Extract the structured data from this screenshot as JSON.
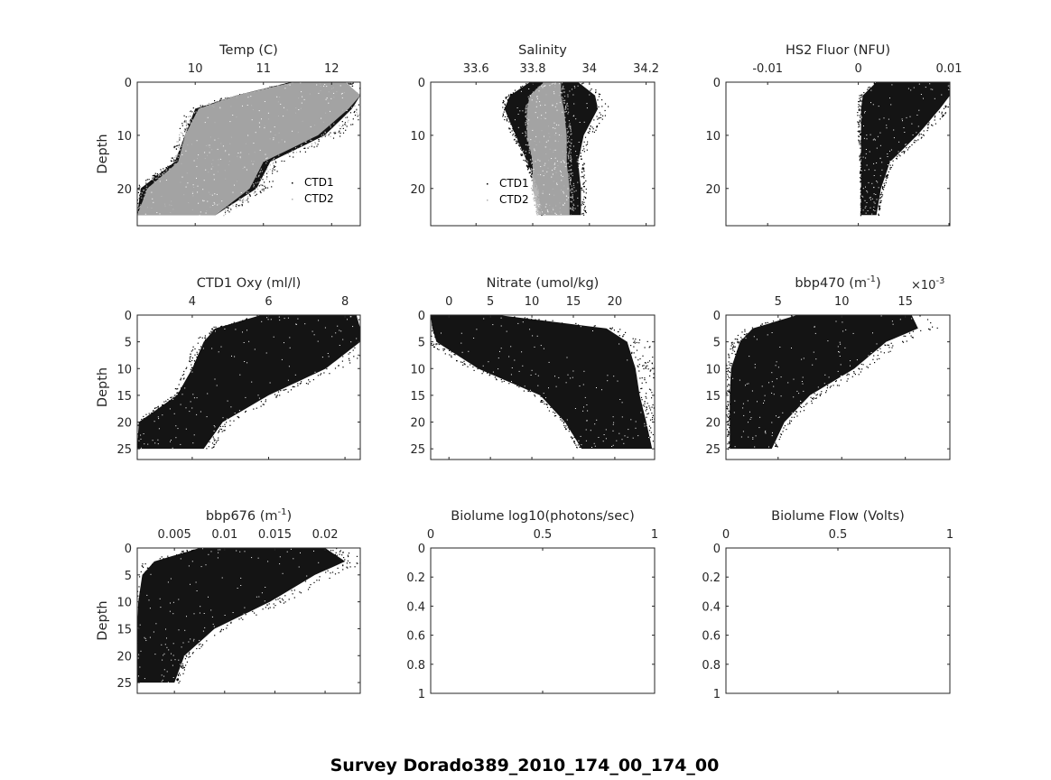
{
  "suptitle": "Survey Dorado389_2010_174_00_174_00",
  "colors": {
    "ctd1": "#000000",
    "ctd2": "#b0b0b0",
    "axis": "#262626"
  },
  "chart_data": [
    {
      "type": "scatter",
      "title": "Temp (C)",
      "ylabel": "Depth",
      "xlim": [
        9.15,
        12.42
      ],
      "ylim": [
        0,
        27
      ],
      "xticks": [
        10,
        11,
        12
      ],
      "xtick_labels": [
        "10",
        "11",
        "12"
      ],
      "yticks": [
        0,
        10,
        20
      ],
      "ytick_labels": [
        "0",
        "10",
        "20"
      ],
      "legend": {
        "entries": [
          "CTD1",
          "CTD2"
        ],
        "placement": "bottom-right"
      },
      "series": [
        {
          "name": "CTD1",
          "color": "#000000",
          "envelope": {
            "depth": [
              0,
              2.5,
              5,
              10,
              15,
              20,
              25
            ],
            "min": [
              11.4,
              10.6,
              10.0,
              9.85,
              9.7,
              9.2,
              9.15
            ],
            "max": [
              12.2,
              12.42,
              12.3,
              11.9,
              11.1,
              10.9,
              10.3
            ]
          }
        },
        {
          "name": "CTD2",
          "color": "#b0b0b0",
          "envelope": {
            "depth": [
              0,
              2.5,
              5,
              10,
              15,
              20,
              25
            ],
            "min": [
              11.45,
              10.6,
              10.05,
              9.85,
              9.75,
              9.3,
              9.15
            ],
            "max": [
              12.2,
              12.42,
              12.25,
              11.8,
              11.0,
              10.8,
              10.3
            ]
          }
        }
      ]
    },
    {
      "type": "scatter",
      "title": "Salinity",
      "ylabel": "",
      "xlim": [
        33.44,
        34.23
      ],
      "ylim": [
        0,
        27
      ],
      "xticks": [
        33.6,
        33.8,
        34,
        34.2
      ],
      "xtick_labels": [
        "33.6",
        "33.8",
        "34",
        "34.2"
      ],
      "yticks": [
        0,
        10,
        20
      ],
      "ytick_labels": [
        "0",
        "10",
        "20"
      ],
      "legend": {
        "entries": [
          "CTD1",
          "CTD2"
        ],
        "placement": "bottom-left"
      },
      "series": [
        {
          "name": "CTD1",
          "color": "#000000",
          "envelope": {
            "depth": [
              0,
              2.5,
              5,
              10,
              15,
              20,
              25
            ],
            "min": [
              33.79,
              33.72,
              33.7,
              33.74,
              33.78,
              33.82,
              33.83
            ],
            "max": [
              33.96,
              34.02,
              34.03,
              33.98,
              33.96,
              33.97,
              33.97
            ]
          }
        },
        {
          "name": "CTD2",
          "color": "#b0b0b0",
          "envelope": {
            "depth": [
              0,
              2.5,
              5,
              10,
              15,
              20,
              25
            ],
            "min": [
              33.84,
              33.79,
              33.78,
              33.78,
              33.8,
              33.8,
              33.82
            ],
            "max": [
              33.9,
              33.9,
              33.91,
              33.92,
              33.92,
              33.93,
              33.93
            ]
          }
        }
      ]
    },
    {
      "type": "scatter",
      "title": "HS2 Fluor (NFU)",
      "ylabel": "",
      "xlim": [
        -0.0146,
        0.0101
      ],
      "ylim": [
        0,
        27
      ],
      "xticks": [
        -0.01,
        0,
        0.01
      ],
      "xtick_labels": [
        "-0.01",
        "0",
        "0.01"
      ],
      "yticks": [
        0,
        10,
        20
      ],
      "ytick_labels": [
        "0",
        "10",
        "20"
      ],
      "series": [
        {
          "name": "HS2",
          "color": "#000000",
          "envelope": {
            "depth": [
              0,
              2.5,
              5,
              10,
              15,
              20,
              25
            ],
            "min": [
              0.002,
              0.0005,
              0.0003,
              0.0003,
              0.0003,
              0.0003,
              0.0003
            ],
            "max": [
              0.01,
              0.0101,
              0.009,
              0.0065,
              0.0035,
              0.0025,
              0.002
            ]
          }
        }
      ]
    },
    {
      "type": "scatter",
      "title": "CTD1 Oxy (ml/l)",
      "ylabel": "Depth",
      "xlim": [
        2.56,
        8.4
      ],
      "ylim": [
        0,
        27
      ],
      "xticks": [
        4,
        6,
        8
      ],
      "xtick_labels": [
        "4",
        "6",
        "8"
      ],
      "yticks": [
        0,
        5,
        10,
        15,
        20,
        25
      ],
      "ytick_labels": [
        "0",
        "5",
        "10",
        "15",
        "20",
        "25"
      ],
      "series": [
        {
          "name": "CTD1 Oxy",
          "color": "#000000",
          "envelope": {
            "depth": [
              0,
              2.5,
              5,
              10,
              15,
              20,
              25
            ],
            "min": [
              5.8,
              4.6,
              4.3,
              4.0,
              3.6,
              2.6,
              2.56
            ],
            "max": [
              8.3,
              8.4,
              8.4,
              7.5,
              6.0,
              4.8,
              4.3
            ]
          }
        }
      ]
    },
    {
      "type": "scatter",
      "title": "Nitrate (umol/kg)",
      "ylabel": "",
      "xlim": [
        -2.2,
        24.8
      ],
      "ylim": [
        0,
        27
      ],
      "xticks": [
        0,
        5,
        10,
        15,
        20
      ],
      "xtick_labels": [
        "0",
        "5",
        "10",
        "15",
        "20"
      ],
      "yticks": [
        0,
        5,
        10,
        15,
        20,
        25
      ],
      "ytick_labels": [
        "0",
        "5",
        "10",
        "15",
        "20",
        "25"
      ],
      "series": [
        {
          "name": "Nitrate",
          "color": "#000000",
          "envelope": {
            "depth": [
              0,
              2.5,
              5,
              10,
              15,
              20,
              25
            ],
            "min": [
              -2.2,
              -2.0,
              -1.5,
              3.5,
              11.0,
              14.0,
              16.0
            ],
            "max": [
              6.0,
              19.0,
              21.5,
              22.5,
              23.0,
              23.8,
              24.5
            ]
          }
        }
      ]
    },
    {
      "type": "scatter",
      "title": "bbp470 (m-1)",
      "title_main": "bbp470 (m",
      "title_sup": "-1",
      "title_end": ")",
      "ylabel": "",
      "exponent_label": "×10",
      "exponent_sup": "-3",
      "xlim": [
        0.0009,
        0.0185
      ],
      "ylim": [
        0,
        27
      ],
      "xticks": [
        0.005,
        0.01,
        0.015
      ],
      "xtick_labels": [
        "5",
        "10",
        "15"
      ],
      "yticks": [
        0,
        5,
        10,
        15,
        20,
        25
      ],
      "ytick_labels": [
        "0",
        "5",
        "10",
        "15",
        "20",
        "25"
      ],
      "series": [
        {
          "name": "bbp470",
          "color": "#000000",
          "envelope": {
            "depth": [
              0,
              2.5,
              5,
              10,
              15,
              20,
              25
            ],
            "min": [
              0.0065,
              0.003,
              0.002,
              0.0013,
              0.0012,
              0.0012,
              0.0012
            ],
            "max": [
              0.0155,
              0.016,
              0.0135,
              0.011,
              0.0075,
              0.0055,
              0.0045
            ]
          }
        }
      ]
    },
    {
      "type": "scatter",
      "title": "bbp676 (m-1)",
      "title_main": "bbp676 (m",
      "title_sup": "-1",
      "title_end": ")",
      "ylabel": "Depth",
      "xlim": [
        0.0013,
        0.0235
      ],
      "ylim": [
        0,
        27
      ],
      "xticks": [
        0.005,
        0.01,
        0.015,
        0.02
      ],
      "xtick_labels": [
        "0.005",
        "0.01",
        "0.015",
        "0.02"
      ],
      "yticks": [
        0,
        5,
        10,
        15,
        20,
        25
      ],
      "ytick_labels": [
        "0",
        "5",
        "10",
        "15",
        "20",
        "25"
      ],
      "series": [
        {
          "name": "bbp676",
          "color": "#000000",
          "envelope": {
            "depth": [
              0,
              2.5,
              5,
              10,
              15,
              20,
              25
            ],
            "min": [
              0.0075,
              0.003,
              0.0018,
              0.0014,
              0.0013,
              0.0013,
              0.0013
            ],
            "max": [
              0.02,
              0.022,
              0.019,
              0.0145,
              0.009,
              0.006,
              0.005
            ]
          }
        }
      ]
    },
    {
      "type": "scatter",
      "title": "Biolume log10(photons/sec)",
      "ylabel": "",
      "xlim": [
        0,
        1
      ],
      "ylim": [
        0,
        1
      ],
      "xticks": [
        0,
        0.5,
        1
      ],
      "xtick_labels": [
        "0",
        "0.5",
        "1"
      ],
      "yticks": [
        0,
        0.2,
        0.4,
        0.6,
        0.8,
        1
      ],
      "ytick_labels": [
        "0",
        "0.2",
        "0.4",
        "0.6",
        "0.8",
        "1"
      ],
      "series": []
    },
    {
      "type": "scatter",
      "title": "Biolume Flow (Volts)",
      "ylabel": "",
      "xlim": [
        0,
        1
      ],
      "ylim": [
        0,
        1
      ],
      "xticks": [
        0,
        0.5,
        1
      ],
      "xtick_labels": [
        "0",
        "0.5",
        "1"
      ],
      "yticks": [
        0,
        0.2,
        0.4,
        0.6,
        0.8,
        1
      ],
      "ytick_labels": [
        "0",
        "0.2",
        "0.4",
        "0.6",
        "0.8",
        "1"
      ],
      "series": []
    }
  ]
}
